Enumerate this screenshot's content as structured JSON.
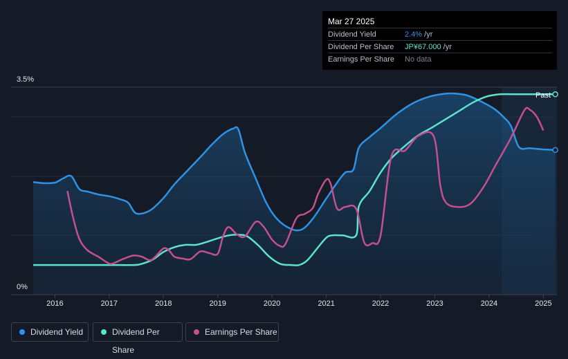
{
  "tooltip": {
    "date": "Mar 27 2025",
    "rows": [
      {
        "label": "Dividend Yield",
        "value": "2.4%",
        "unit": " /yr",
        "color": "#2e93e6"
      },
      {
        "label": "Dividend Per Share",
        "value": "JP¥67.000",
        "unit": " /yr",
        "color": "#5ee3cc"
      },
      {
        "label": "Earnings Per Share",
        "value": "No data",
        "unit": "",
        "color": "#7c8391"
      }
    ]
  },
  "past_label": "Past",
  "legend": [
    {
      "label": "Dividend Yield",
      "color": "#2e93e6"
    },
    {
      "label": "Dividend Per Share",
      "color": "#5ee3cc"
    },
    {
      "label": "Earnings Per Share",
      "color": "#c54f8f"
    }
  ],
  "chart_data": {
    "type": "line",
    "y_tick_labels": [
      "3.5%",
      "0%"
    ],
    "ylim": [
      0,
      3.5
    ],
    "x_tick_labels": [
      "2016",
      "2017",
      "2018",
      "2019",
      "2020",
      "2021",
      "2022",
      "2023",
      "2024",
      "2025"
    ],
    "xlim": [
      2015.6,
      2025.25
    ],
    "series": [
      {
        "name": "Dividend Yield",
        "color": "#2e93e6",
        "area": true,
        "points": [
          [
            2015.6,
            1.9
          ],
          [
            2015.8,
            1.88
          ],
          [
            2016.0,
            1.89
          ],
          [
            2016.15,
            1.96
          ],
          [
            2016.3,
            2.0
          ],
          [
            2016.45,
            1.78
          ],
          [
            2016.6,
            1.74
          ],
          [
            2016.8,
            1.69
          ],
          [
            2017.0,
            1.66
          ],
          [
            2017.2,
            1.61
          ],
          [
            2017.35,
            1.55
          ],
          [
            2017.5,
            1.37
          ],
          [
            2017.75,
            1.42
          ],
          [
            2018.0,
            1.63
          ],
          [
            2018.2,
            1.86
          ],
          [
            2018.45,
            2.1
          ],
          [
            2018.7,
            2.34
          ],
          [
            2018.9,
            2.54
          ],
          [
            2019.1,
            2.71
          ],
          [
            2019.28,
            2.8
          ],
          [
            2019.38,
            2.79
          ],
          [
            2019.5,
            2.4
          ],
          [
            2019.7,
            1.96
          ],
          [
            2019.9,
            1.54
          ],
          [
            2020.1,
            1.27
          ],
          [
            2020.35,
            1.11
          ],
          [
            2020.55,
            1.1
          ],
          [
            2020.75,
            1.28
          ],
          [
            2021.0,
            1.62
          ],
          [
            2021.2,
            1.89
          ],
          [
            2021.35,
            2.06
          ],
          [
            2021.5,
            2.11
          ],
          [
            2021.6,
            2.48
          ],
          [
            2021.8,
            2.66
          ],
          [
            2022.0,
            2.81
          ],
          [
            2022.3,
            3.05
          ],
          [
            2022.6,
            3.23
          ],
          [
            2022.9,
            3.34
          ],
          [
            2023.2,
            3.39
          ],
          [
            2023.4,
            3.39
          ],
          [
            2023.6,
            3.36
          ],
          [
            2023.85,
            3.26
          ],
          [
            2024.1,
            3.13
          ],
          [
            2024.25,
            3.01
          ],
          [
            2024.4,
            2.85
          ],
          [
            2024.55,
            2.49
          ],
          [
            2024.75,
            2.47
          ],
          [
            2025.0,
            2.45
          ],
          [
            2025.22,
            2.44
          ]
        ]
      },
      {
        "name": "Dividend Per Share",
        "color": "#5ee3cc",
        "area": false,
        "points": [
          [
            2015.6,
            0.5
          ],
          [
            2016.0,
            0.5
          ],
          [
            2016.5,
            0.5
          ],
          [
            2017.0,
            0.5
          ],
          [
            2017.45,
            0.5
          ],
          [
            2017.6,
            0.52
          ],
          [
            2017.8,
            0.59
          ],
          [
            2018.0,
            0.72
          ],
          [
            2018.2,
            0.8
          ],
          [
            2018.4,
            0.84
          ],
          [
            2018.6,
            0.84
          ],
          [
            2018.8,
            0.89
          ],
          [
            2019.0,
            0.95
          ],
          [
            2019.2,
            1.0
          ],
          [
            2019.4,
            1.01
          ],
          [
            2019.55,
            0.98
          ],
          [
            2019.75,
            0.83
          ],
          [
            2019.95,
            0.64
          ],
          [
            2020.15,
            0.52
          ],
          [
            2020.35,
            0.5
          ],
          [
            2020.5,
            0.5
          ],
          [
            2020.65,
            0.58
          ],
          [
            2020.85,
            0.8
          ],
          [
            2021.0,
            0.96
          ],
          [
            2021.1,
            1.0
          ],
          [
            2021.3,
            1.0
          ],
          [
            2021.55,
            1.0
          ],
          [
            2021.6,
            1.49
          ],
          [
            2021.8,
            1.75
          ],
          [
            2022.0,
            2.06
          ],
          [
            2022.2,
            2.3
          ],
          [
            2022.45,
            2.51
          ],
          [
            2022.7,
            2.69
          ],
          [
            2022.95,
            2.82
          ],
          [
            2023.2,
            2.96
          ],
          [
            2023.45,
            3.1
          ],
          [
            2023.7,
            3.24
          ],
          [
            2023.95,
            3.34
          ],
          [
            2024.2,
            3.38
          ],
          [
            2024.5,
            3.38
          ],
          [
            2025.22,
            3.38
          ]
        ]
      },
      {
        "name": "Earnings Per Share",
        "color": "#c54f8f",
        "area": false,
        "points": [
          [
            2016.23,
            1.75
          ],
          [
            2016.33,
            1.32
          ],
          [
            2016.45,
            0.94
          ],
          [
            2016.6,
            0.75
          ],
          [
            2016.8,
            0.64
          ],
          [
            2016.95,
            0.55
          ],
          [
            2017.05,
            0.52
          ],
          [
            2017.25,
            0.6
          ],
          [
            2017.45,
            0.66
          ],
          [
            2017.6,
            0.64
          ],
          [
            2017.75,
            0.58
          ],
          [
            2017.85,
            0.64
          ],
          [
            2018.0,
            0.78
          ],
          [
            2018.1,
            0.75
          ],
          [
            2018.2,
            0.64
          ],
          [
            2018.35,
            0.61
          ],
          [
            2018.5,
            0.6
          ],
          [
            2018.68,
            0.73
          ],
          [
            2018.85,
            0.7
          ],
          [
            2019.0,
            0.69
          ],
          [
            2019.1,
            0.99
          ],
          [
            2019.2,
            1.14
          ],
          [
            2019.35,
            1.02
          ],
          [
            2019.5,
            0.98
          ],
          [
            2019.7,
            1.23
          ],
          [
            2019.85,
            1.14
          ],
          [
            2020.0,
            0.93
          ],
          [
            2020.15,
            0.82
          ],
          [
            2020.25,
            0.86
          ],
          [
            2020.45,
            1.29
          ],
          [
            2020.6,
            1.36
          ],
          [
            2020.75,
            1.46
          ],
          [
            2020.85,
            1.7
          ],
          [
            2021.0,
            1.94
          ],
          [
            2021.08,
            1.87
          ],
          [
            2021.2,
            1.45
          ],
          [
            2021.35,
            1.48
          ],
          [
            2021.55,
            1.45
          ],
          [
            2021.7,
            0.88
          ],
          [
            2021.85,
            0.87
          ],
          [
            2022.0,
            1.0
          ],
          [
            2022.2,
            2.33
          ],
          [
            2022.45,
            2.43
          ],
          [
            2022.7,
            2.68
          ],
          [
            2022.98,
            2.67
          ],
          [
            2023.1,
            1.85
          ],
          [
            2023.2,
            1.56
          ],
          [
            2023.4,
            1.48
          ],
          [
            2023.65,
            1.53
          ],
          [
            2023.9,
            1.82
          ],
          [
            2024.1,
            2.15
          ],
          [
            2024.4,
            2.64
          ],
          [
            2024.65,
            3.11
          ],
          [
            2024.75,
            3.12
          ],
          [
            2024.88,
            3.0
          ],
          [
            2025.0,
            2.77
          ]
        ]
      }
    ],
    "forecast_start": 2024.23
  }
}
